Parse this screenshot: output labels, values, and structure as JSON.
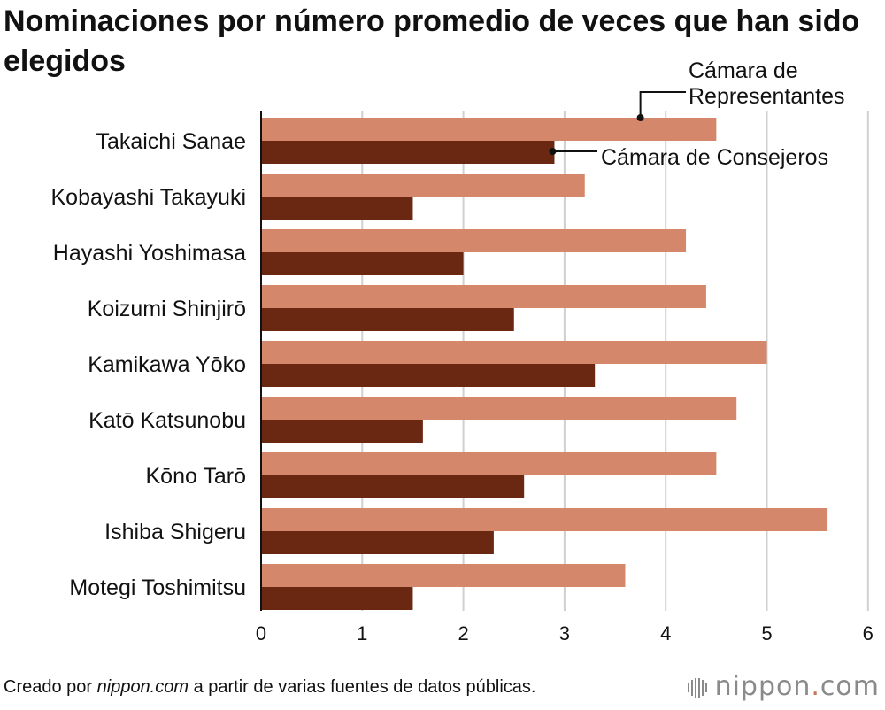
{
  "title": "Nominaciones por número promedio de veces que han sido elegidos",
  "footer": {
    "prefix": "Creado por ",
    "site": "nippon.com",
    "suffix": " a partir de varias fuentes de datos públicas."
  },
  "brand": {
    "name": "nippon",
    "dot": ".",
    "tld": "com"
  },
  "colors": {
    "representatives": "#d4876a",
    "councillors": "#6a2711",
    "grid": "#d0d0d0",
    "axis": "#111111"
  },
  "chart_data": {
    "type": "bar",
    "orientation": "horizontal",
    "categories": [
      "Takaichi Sanae",
      "Kobayashi Takayuki",
      "Hayashi Yoshimasa",
      "Koizumi Shinjirō",
      "Kamikawa Yōko",
      "Katō Katsunobu",
      "Kōno Tarō",
      "Ishiba Shigeru",
      "Motegi Toshimitsu"
    ],
    "series": [
      {
        "name": "Cámara de Representantes",
        "label_lines": [
          "Cámara de",
          "Representantes"
        ],
        "color": "#d4876a",
        "values": [
          4.5,
          3.2,
          4.2,
          4.4,
          5.0,
          4.7,
          4.5,
          5.6,
          3.6
        ]
      },
      {
        "name": "Cámara de Consejeros",
        "label_lines": [
          "Cámara de Consejeros"
        ],
        "color": "#6a2711",
        "values": [
          2.9,
          1.5,
          2.0,
          2.5,
          3.3,
          1.6,
          2.6,
          2.3,
          1.5
        ]
      }
    ],
    "xlim": [
      0,
      6
    ],
    "xticks": [
      "0",
      "1",
      "2",
      "3",
      "4",
      "5",
      "6"
    ],
    "grid": true,
    "legend": "direct labels with leader lines on first category"
  }
}
